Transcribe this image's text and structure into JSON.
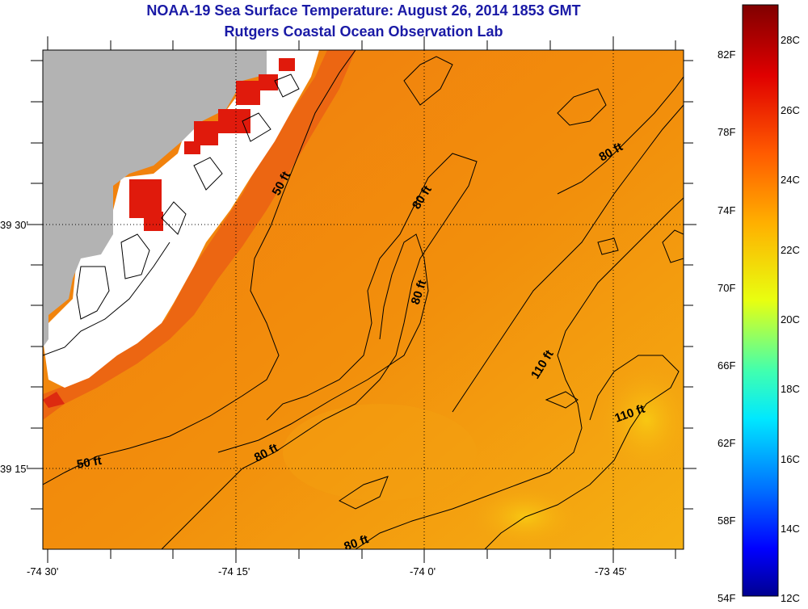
{
  "title": "NOAA-19 Sea Surface Temperature:  August 26, 2014 1853 GMT",
  "subtitle": "Rutgers Coastal Ocean Observation Lab",
  "colors": {
    "title": "#1a1aa6",
    "land": "#b3b3b3",
    "cloud": "#ffffff",
    "warm_sea": "#ee5a10",
    "sea": "#f28a0c",
    "cool_sea": "#f7b510"
  },
  "axes": {
    "x_ticks": [
      "-74 30'",
      "-74 15'",
      "-74 0'",
      "-73 45'"
    ],
    "y_ticks": [
      "39 30'",
      "39 15'"
    ]
  },
  "contour_labels": [
    {
      "text": "50 ft",
      "id": "c50a"
    },
    {
      "text": "80 ft",
      "id": "c80a"
    },
    {
      "text": "80 ft",
      "id": "c80b"
    },
    {
      "text": "80 ft",
      "id": "c80c"
    },
    {
      "text": "110 ft",
      "id": "c110a"
    },
    {
      "text": "110 ft",
      "id": "c110b"
    },
    {
      "text": "50 ft",
      "id": "c50b"
    },
    {
      "text": "80 ft",
      "id": "c80d"
    },
    {
      "text": "80 ft",
      "id": "c80e"
    }
  ],
  "colorbar": {
    "fahrenheit": [
      "82F",
      "78F",
      "74F",
      "70F",
      "66F",
      "62F",
      "58F",
      "54F"
    ],
    "celsius": [
      "28C",
      "26C",
      "24C",
      "22C",
      "20C",
      "18C",
      "16C",
      "14C",
      "12C"
    ]
  }
}
